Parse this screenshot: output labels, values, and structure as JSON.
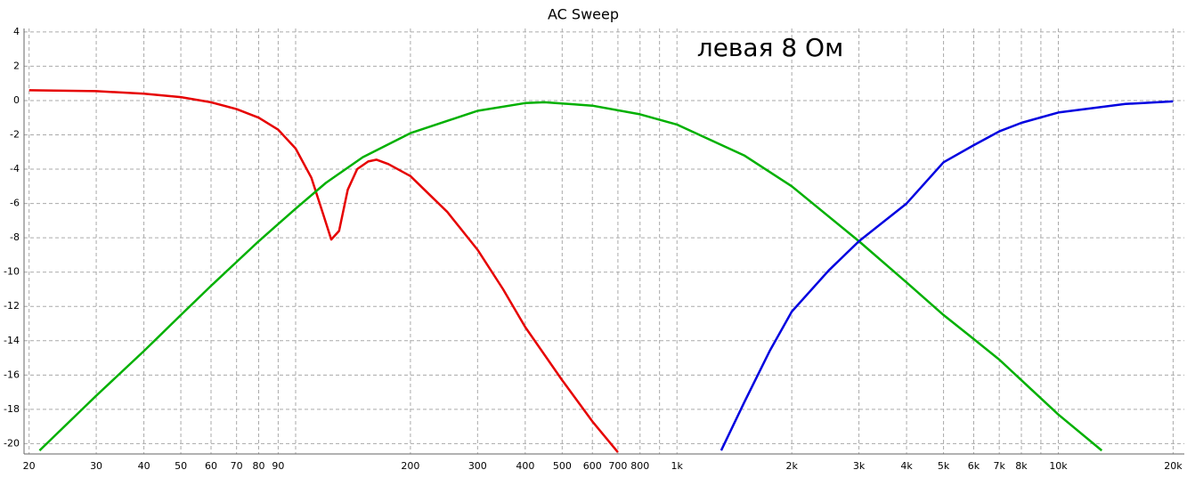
{
  "chart_data": {
    "type": "line",
    "title": "AC Sweep",
    "annotation": "левая 8 Ом",
    "log_x": true,
    "grid": true,
    "xlim": [
      19.4,
      21400
    ],
    "ylim": [
      -20.6,
      4.2
    ],
    "xticks": [
      20,
      30,
      40,
      50,
      60,
      70,
      80,
      90,
      200,
      300,
      400,
      500,
      600,
      700,
      800,
      {
        "value": 1000,
        "label": "1k"
      },
      {
        "value": 2000,
        "label": "2k"
      },
      {
        "value": 3000,
        "label": "3k"
      },
      {
        "value": 4000,
        "label": "4k"
      },
      {
        "value": 5000,
        "label": "5k"
      },
      {
        "value": 6000,
        "label": "6k"
      },
      {
        "value": 7000,
        "label": "7k"
      },
      {
        "value": 8000,
        "label": "8k"
      },
      {
        "value": 10000,
        "label": "10k"
      },
      {
        "value": 20000,
        "label": "20k"
      }
    ],
    "minor_xticks": [
      100,
      900,
      9000
    ],
    "yticks": [
      -20,
      -18,
      -16,
      -14,
      -12,
      -10,
      -8,
      -6,
      -4,
      -2,
      0,
      2,
      4
    ],
    "series": [
      {
        "color": "#e60000",
        "x": [
          20,
          30,
          40,
          50,
          60,
          70,
          80,
          90,
          100,
          110,
          118,
          124,
          130,
          137,
          145,
          155,
          163,
          175,
          200,
          250,
          300,
          350,
          400,
          500,
          600,
          700
        ],
        "values": [
          0.6,
          0.55,
          0.4,
          0.2,
          -0.1,
          -0.5,
          -1.0,
          -1.7,
          -2.8,
          -4.5,
          -6.6,
          -8.1,
          -7.6,
          -5.2,
          -4.0,
          -3.55,
          -3.45,
          -3.7,
          -4.4,
          -6.5,
          -8.7,
          -11.0,
          -13.2,
          -16.3,
          -18.7,
          -20.5
        ]
      },
      {
        "color": "#00b000",
        "x": [
          21.3,
          30,
          40,
          50,
          60,
          80,
          100,
          120,
          150,
          200,
          300,
          400,
          450,
          600,
          800,
          1000,
          1500,
          2000,
          3000,
          4000,
          5000,
          6000,
          7000,
          10000,
          13000
        ],
        "values": [
          -20.4,
          -17.2,
          -14.6,
          -12.5,
          -10.8,
          -8.2,
          -6.3,
          -4.8,
          -3.3,
          -1.9,
          -0.6,
          -0.15,
          -0.1,
          -0.3,
          -0.8,
          -1.4,
          -3.2,
          -5.0,
          -8.2,
          -10.6,
          -12.5,
          -13.9,
          -15.1,
          -18.3,
          -20.4
        ]
      },
      {
        "color": "#0000e0",
        "x": [
          1306,
          1500,
          1750,
          2000,
          2500,
          3000,
          4000,
          5000,
          6000,
          7000,
          8000,
          10000,
          15000,
          20000
        ],
        "values": [
          -20.4,
          -17.6,
          -14.6,
          -12.3,
          -9.9,
          -8.2,
          -6.0,
          -3.6,
          -2.6,
          -1.8,
          -1.3,
          -0.7,
          -0.2,
          -0.05
        ]
      }
    ]
  }
}
